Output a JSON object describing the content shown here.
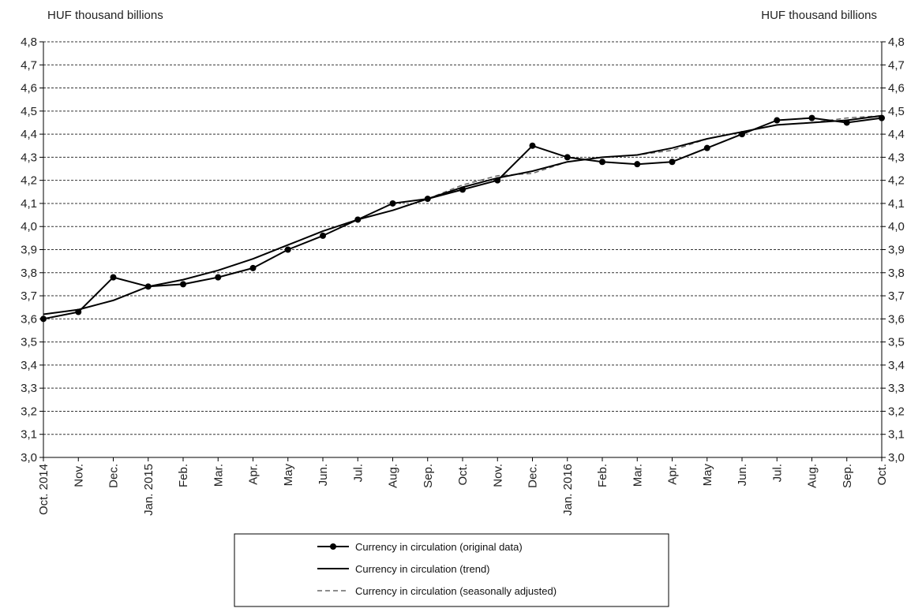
{
  "chart_data": {
    "type": "line",
    "left_unit_label": "HUF thousand billions",
    "right_unit_label": "HUF thousand billions",
    "x": [
      "Oct. 2014",
      "Nov.",
      "Dec.",
      "Jan. 2015",
      "Feb.",
      "Mar.",
      "Apr.",
      "May",
      "Jun.",
      "Jul.",
      "Aug.",
      "Sep.",
      "Oct.",
      "Nov.",
      "Dec.",
      "Jan. 2016",
      "Feb.",
      "Mar.",
      "Apr.",
      "May",
      "Jun.",
      "Jul.",
      "Aug.",
      "Sep.",
      "Oct."
    ],
    "y_ticks": [
      "4,8",
      "4,7",
      "4,6",
      "4,5",
      "4,4",
      "4,3",
      "4,2",
      "4,1",
      "4,0",
      "3,9",
      "3,8",
      "3,7",
      "3,6",
      "3,5",
      "3,4",
      "3,3",
      "3,2",
      "3,1",
      "3,0"
    ],
    "ylim": [
      3.0,
      4.8
    ],
    "grid": "horizontal dashed",
    "legend_position": "bottom-center",
    "series": [
      {
        "name": "Currency in circulation (original data)",
        "style": "solid-markers",
        "values": [
          3.6,
          3.63,
          3.78,
          3.74,
          3.75,
          3.78,
          3.82,
          3.9,
          3.96,
          4.03,
          4.1,
          4.12,
          4.16,
          4.2,
          4.35,
          4.3,
          4.28,
          4.27,
          4.28,
          4.34,
          4.4,
          4.46,
          4.47,
          4.45,
          4.47
        ]
      },
      {
        "name": "Currency in circulation (trend)",
        "style": "solid",
        "values": [
          3.62,
          3.64,
          3.68,
          3.74,
          3.77,
          3.81,
          3.86,
          3.92,
          3.98,
          4.03,
          4.07,
          4.12,
          4.17,
          4.21,
          4.24,
          4.28,
          4.3,
          4.31,
          4.34,
          4.38,
          4.41,
          4.44,
          4.45,
          4.46,
          4.48
        ]
      },
      {
        "name": "Currency in circulation (seasonally adjusted)",
        "style": "dashed",
        "values": [
          3.62,
          3.64,
          3.68,
          3.74,
          3.77,
          3.81,
          3.86,
          3.92,
          3.98,
          4.03,
          4.07,
          4.12,
          4.18,
          4.22,
          4.23,
          4.28,
          4.3,
          4.31,
          4.33,
          4.38,
          4.41,
          4.44,
          4.45,
          4.47,
          4.48
        ]
      }
    ]
  },
  "colors": {
    "line": "#000000",
    "grid": "#333333",
    "dashed_series": "#666666"
  }
}
